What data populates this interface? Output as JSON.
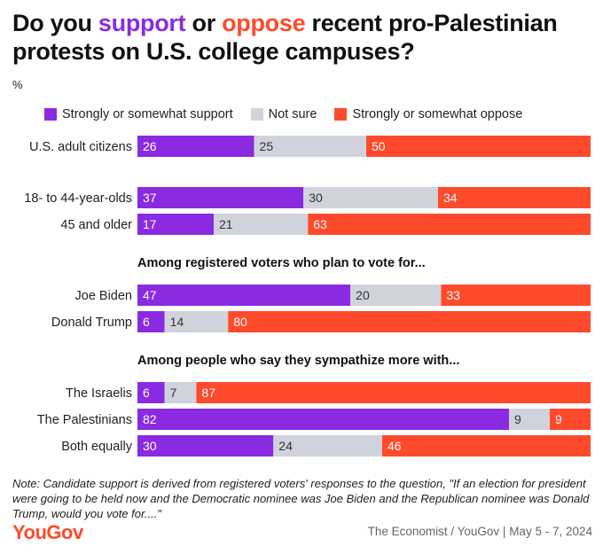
{
  "title": {
    "part1": "Do you ",
    "support_word": "support",
    "part2": " or ",
    "oppose_word": "oppose",
    "part3": " recent pro-Palestinian protests on U.S. college campuses?"
  },
  "unit": "%",
  "colors": {
    "support": "#8a2be2",
    "not_sure": "#d0d3db",
    "oppose": "#ff4a2b"
  },
  "chart_data": {
    "type": "bar",
    "orientation": "horizontal",
    "stacked": true,
    "xlim": [
      0,
      100
    ],
    "legend_position": "top",
    "series": [
      {
        "name": "Strongly or somewhat support",
        "key": "support"
      },
      {
        "name": "Not sure",
        "key": "not_sure"
      },
      {
        "name": "Strongly or somewhat oppose",
        "key": "oppose"
      }
    ],
    "groups": [
      {
        "heading": "",
        "rows": [
          {
            "label": "U.S. adult citizens",
            "values": [
              26,
              25,
              50
            ]
          }
        ]
      },
      {
        "heading": "",
        "rows": [
          {
            "label": "18- to 44-year-olds",
            "values": [
              37,
              30,
              34
            ]
          },
          {
            "label": "45 and older",
            "values": [
              17,
              21,
              63
            ]
          }
        ]
      },
      {
        "heading": "Among registered voters who plan to vote for...",
        "rows": [
          {
            "label": "Joe Biden",
            "values": [
              47,
              20,
              33
            ]
          },
          {
            "label": "Donald Trump",
            "values": [
              6,
              14,
              80
            ]
          }
        ]
      },
      {
        "heading": "Among people who say they sympathize more with...",
        "rows": [
          {
            "label": "The Israelis",
            "values": [
              6,
              7,
              87
            ]
          },
          {
            "label": "The Palestinians",
            "values": [
              82,
              9,
              9
            ]
          },
          {
            "label": "Both equally",
            "values": [
              30,
              24,
              46
            ]
          }
        ]
      }
    ]
  },
  "note": "Note: Candidate support is derived from registered voters' responses to the question, \"If an election for president were going to be held now and the Democratic nominee was Joe Biden and the Republican nominee was Donald Trump, would you vote for....\"",
  "logo": "YouGov",
  "source": "The Economist / YouGov | May 5 - 7, 2024"
}
